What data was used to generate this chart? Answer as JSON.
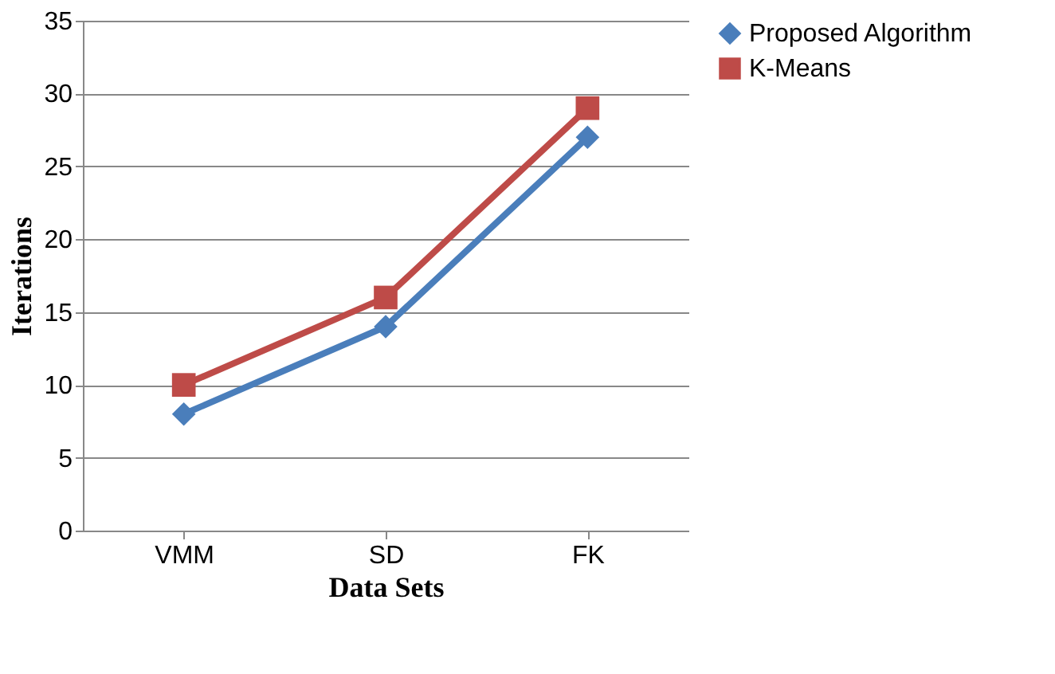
{
  "chart_data": {
    "type": "line",
    "xlabel": "Data Sets",
    "ylabel": "Iterations",
    "categories": [
      "VMM",
      "SD",
      "FK"
    ],
    "series": [
      {
        "name": "Proposed Algorithm",
        "color": "#4a7ebb",
        "marker": "diamond",
        "values": [
          8,
          14,
          27
        ]
      },
      {
        "name": "K-Means",
        "color": "#be4b48",
        "marker": "square",
        "values": [
          10,
          16,
          29
        ]
      }
    ],
    "ylim": [
      0,
      35
    ],
    "yticks": [
      0,
      5,
      10,
      15,
      20,
      25,
      30,
      35
    ],
    "grid": "y",
    "legend": "right"
  }
}
